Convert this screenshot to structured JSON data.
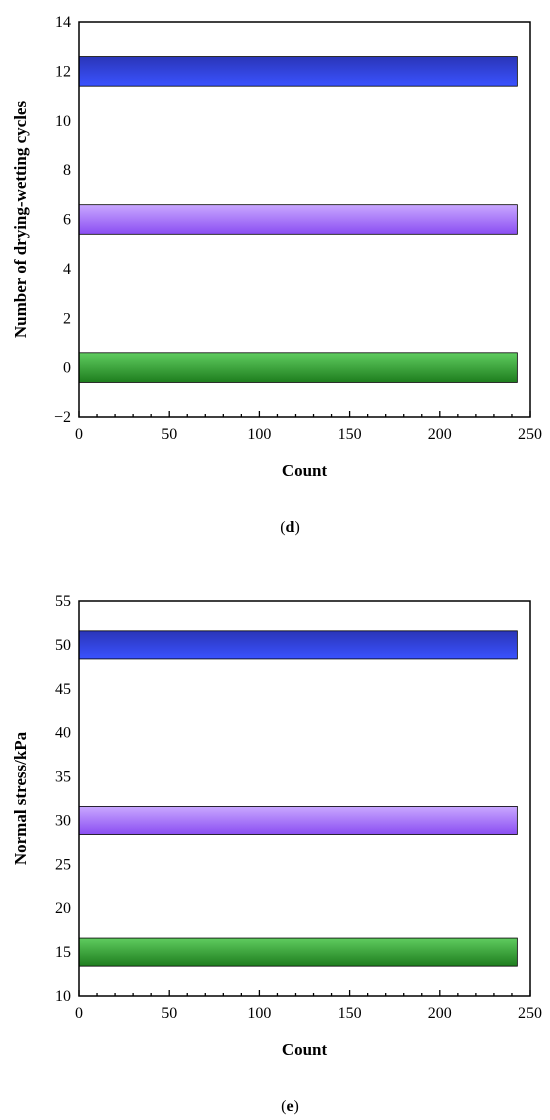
{
  "chart_data": [
    {
      "type": "bar",
      "orientation": "horizontal",
      "panel_label": "d",
      "xlabel": "Count",
      "ylabel": "Number of drying-wetting cycles",
      "xlim": [
        0,
        250
      ],
      "ylim": [
        -2,
        14
      ],
      "xticks": [
        0,
        50,
        100,
        150,
        200,
        250
      ],
      "xtick_labels": [
        "0",
        "50",
        "100",
        "150",
        "200",
        "250"
      ],
      "yticks": [
        -2,
        0,
        2,
        4,
        6,
        8,
        10,
        12,
        14
      ],
      "ytick_labels": [
        "−2",
        "0",
        "2",
        "4",
        "6",
        "8",
        "10",
        "12",
        "14"
      ],
      "bar_halfwidth": 0.6,
      "bars": [
        {
          "y": 0,
          "value": 243,
          "color_top": "#5fcc5f",
          "color_bottom": "#1e7d1e"
        },
        {
          "y": 6,
          "value": 243,
          "color_top": "#c9a8ff",
          "color_bottom": "#8a4df2"
        },
        {
          "y": 12,
          "value": 243,
          "color_top": "#2a35b8",
          "color_bottom": "#3a52ff"
        }
      ],
      "grid": false
    },
    {
      "type": "bar",
      "orientation": "horizontal",
      "panel_label": "e",
      "xlabel": "Count",
      "ylabel": "Normal stress/kPa",
      "xlim": [
        0,
        250
      ],
      "ylim": [
        10,
        55
      ],
      "xticks": [
        0,
        50,
        100,
        150,
        200,
        250
      ],
      "xtick_labels": [
        "0",
        "50",
        "100",
        "150",
        "200",
        "250"
      ],
      "yticks": [
        10,
        15,
        20,
        25,
        30,
        35,
        40,
        45,
        50,
        55
      ],
      "ytick_labels": [
        "10",
        "15",
        "20",
        "25",
        "30",
        "35",
        "40",
        "45",
        "50",
        "55"
      ],
      "bar_halfwidth": 1.6,
      "bars": [
        {
          "y": 15,
          "value": 243,
          "color_top": "#5fcc5f",
          "color_bottom": "#1e7d1e"
        },
        {
          "y": 30,
          "value": 243,
          "color_top": "#c9a8ff",
          "color_bottom": "#8a4df2"
        },
        {
          "y": 50,
          "value": 243,
          "color_top": "#2a35b8",
          "color_bottom": "#3a52ff"
        }
      ],
      "grid": false
    }
  ]
}
